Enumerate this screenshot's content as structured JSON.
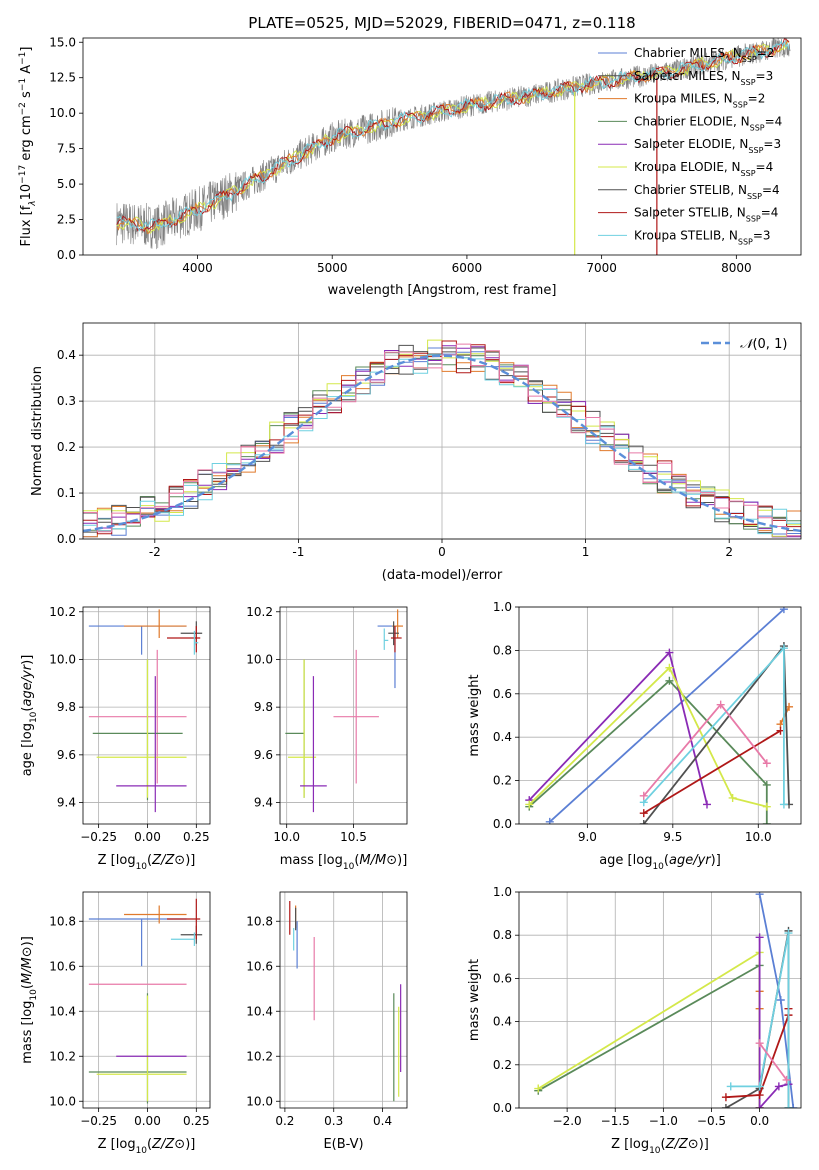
{
  "title": "PLATE=0525, MJD=52029, FIBERID=0471, z=0.118",
  "colors": {
    "Chabrier MILES": "#5b7fd4",
    "Salpeter MILES": "#505050",
    "Kroupa MILES": "#e07a2c",
    "Chabrier ELODIE": "#5a8a5a",
    "Salpeter ELODIE": "#8a2bb5",
    "Kroupa ELODIE": "#d4e84a",
    "Chabrier STELIB": "#505050",
    "Salpeter STELIB": "#b01818",
    "Kroupa STELIB": "#6fd0e0",
    "extra_pink": "#e87aa8",
    "data": "#808080",
    "normal": "#5b8fd9"
  },
  "chart_data": [
    {
      "type": "line",
      "id": "spectrum",
      "title": "PLATE=0525, MJD=52029, FIBERID=0471, z=0.118",
      "xlabel": "wavelength [Angstrom, rest frame]",
      "ylabel_parts": [
        "Flux [f",
        "λ",
        "10",
        "−17",
        " erg cm",
        "−2",
        " s",
        "−1",
        " A",
        "−1",
        "]"
      ],
      "xlim": [
        3150,
        8480
      ],
      "ylim": [
        0,
        15.3
      ],
      "xticks": [
        4000,
        5000,
        6000,
        7000,
        8000
      ],
      "yticks": [
        0.0,
        2.5,
        5.0,
        7.5,
        10.0,
        12.5,
        15.0
      ],
      "legend": [
        {
          "name": "Chabrier MILES",
          "nssp": "2"
        },
        {
          "name": "Salpeter MILES",
          "nssp": "3"
        },
        {
          "name": "Kroupa MILES",
          "nssp": "2"
        },
        {
          "name": "Chabrier ELODIE",
          "nssp": "4"
        },
        {
          "name": "Salpeter ELODIE",
          "nssp": "3"
        },
        {
          "name": "Kroupa ELODIE",
          "nssp": "4"
        },
        {
          "name": "Chabrier STELIB",
          "nssp": "4"
        },
        {
          "name": "Salpeter STELIB",
          "nssp": "4"
        },
        {
          "name": "Kroupa STELIB",
          "nssp": "3"
        }
      ],
      "legend_placement": "right",
      "continuum": {
        "x": [
          3400,
          3700,
          4000,
          4300,
          4600,
          5000,
          5500,
          6000,
          6500,
          7000,
          7500,
          8000,
          8400
        ],
        "y": [
          2.3,
          2.0,
          3.2,
          4.6,
          6.2,
          8.3,
          9.5,
          10.5,
          11.3,
          12.2,
          12.9,
          14.0,
          14.8
        ]
      }
    },
    {
      "type": "histogram",
      "id": "residuals",
      "xlabel": "(data-model)/error",
      "ylabel": "Normed distribution",
      "xlim": [
        -2.5,
        2.5
      ],
      "ylim": [
        0,
        0.47
      ],
      "xticks": [
        -2,
        -1,
        0,
        1,
        2
      ],
      "yticks": [
        0.0,
        0.1,
        0.2,
        0.3,
        0.4
      ],
      "grid": true,
      "legend": [
        {
          "name": "N(0,1)",
          "label_parts": [
            "𝒩",
            "(0, 1)"
          ]
        }
      ],
      "legend_placement": "top-right",
      "bin_width": 0.1
    },
    {
      "type": "errorbar",
      "id": "age-vs-Z",
      "xlabel": "Z [log10(Z/Z⊙)]",
      "ylabel": "age [log10(age/yr)]",
      "xlim": [
        -0.33,
        0.32
      ],
      "ylim": [
        9.31,
        10.22
      ],
      "xticks": [
        -0.25,
        0.0,
        0.25
      ],
      "xticklabels": [
        "−0.25",
        "0.00",
        "0.25"
      ],
      "yticks": [
        9.4,
        9.6,
        9.8,
        10.0,
        10.2
      ],
      "grid": true,
      "points": [
        {
          "model": "Chabrier MILES",
          "x": -0.03,
          "xerr": [
            0.27,
            0.23
          ],
          "y": 10.14,
          "yerr": [
            0.12,
            0.0
          ]
        },
        {
          "model": "Kroupa MILES",
          "x": 0.06,
          "xerr": [
            0.18,
            0.14
          ],
          "y": 10.14,
          "yerr": [
            0.05,
            0.07
          ]
        },
        {
          "model": "Chabrier STELIB",
          "x": 0.25,
          "xerr": [
            0.08,
            0.03
          ],
          "y": 10.11,
          "yerr": [
            0.05,
            0.05
          ]
        },
        {
          "model": "Salpeter STELIB",
          "x": 0.25,
          "xerr": [
            0.15,
            0.02
          ],
          "y": 10.09,
          "yerr": [
            0.06,
            0.05
          ]
        },
        {
          "model": "Kroupa STELIB",
          "x": 0.24,
          "xerr": [
            0.0,
            0.02
          ],
          "y": 10.07,
          "yerr": [
            0.05,
            0.05
          ]
        },
        {
          "model": "extra_pink",
          "x": 0.05,
          "xerr": [
            0.35,
            0.15
          ],
          "y": 9.76,
          "yerr": [
            0.28,
            0.28
          ]
        },
        {
          "model": "Chabrier ELODIE",
          "x": 0.0,
          "xerr": [
            0.28,
            0.18
          ],
          "y": 9.69,
          "yerr": [
            0.28,
            0.31
          ]
        },
        {
          "model": "Kroupa ELODIE",
          "x": 0.0,
          "xerr": [
            0.26,
            0.2
          ],
          "y": 9.59,
          "yerr": [
            0.17,
            0.41
          ]
        },
        {
          "model": "Salpeter ELODIE",
          "x": 0.04,
          "xerr": [
            0.2,
            0.16
          ],
          "y": 9.47,
          "yerr": [
            0.11,
            0.46
          ]
        }
      ]
    },
    {
      "type": "errorbar",
      "id": "age-vs-mass",
      "xlabel": "mass [log10(M/M⊙)]",
      "xlim": [
        9.95,
        10.9
      ],
      "ylim": [
        9.31,
        10.22
      ],
      "xticks": [
        10.0,
        10.5
      ],
      "xticklabels": [
        "10.0",
        "10.5"
      ],
      "yticks": [
        9.4,
        9.6,
        9.8,
        10.0,
        10.2
      ],
      "grid": true,
      "points": [
        {
          "model": "Chabrier MILES",
          "x": 10.81,
          "xerr": [
            0.13,
            0.0
          ],
          "y": 10.14,
          "yerr": [
            0.26,
            0.0
          ]
        },
        {
          "model": "Kroupa MILES",
          "x": 10.83,
          "xerr": [
            0.04,
            0.04
          ],
          "y": 10.14,
          "yerr": [
            0.05,
            0.07
          ]
        },
        {
          "model": "Chabrier STELIB",
          "x": 10.8,
          "xerr": [
            0.04,
            0.04
          ],
          "y": 10.11,
          "yerr": [
            0.05,
            0.05
          ]
        },
        {
          "model": "Salpeter STELIB",
          "x": 10.81,
          "xerr": [
            0.03,
            0.05
          ],
          "y": 10.09,
          "yerr": [
            0.06,
            0.05
          ]
        },
        {
          "model": "Kroupa STELIB",
          "x": 10.73,
          "xerr": [
            0.0,
            0.03
          ],
          "y": 10.08,
          "yerr": [
            0.04,
            0.05
          ]
        },
        {
          "model": "extra_pink",
          "x": 10.52,
          "xerr": [
            0.17,
            0.17
          ],
          "y": 9.76,
          "yerr": [
            0.28,
            0.28
          ]
        },
        {
          "model": "Chabrier ELODIE",
          "x": 10.13,
          "xerr": [
            0.14,
            0.0
          ],
          "y": 9.69,
          "yerr": [
            0.27,
            0.31
          ]
        },
        {
          "model": "Kroupa ELODIE",
          "x": 10.13,
          "xerr": [
            0.12,
            0.09
          ],
          "y": 9.59,
          "yerr": [
            0.17,
            0.41
          ]
        },
        {
          "model": "Salpeter ELODIE",
          "x": 10.2,
          "xerr": [
            0.1,
            0.1
          ],
          "y": 9.47,
          "yerr": [
            0.11,
            0.46
          ]
        }
      ]
    },
    {
      "type": "line",
      "id": "weight-vs-age",
      "xlabel": "age [log10(age/yr)]",
      "ylabel": "mass weight",
      "xlim": [
        8.6,
        10.25
      ],
      "ylim": [
        0,
        1.0
      ],
      "xticks": [
        9.0,
        9.5,
        10.0
      ],
      "xticklabels": [
        "9.0",
        "9.5",
        "10.0"
      ],
      "yticks": [
        0.0,
        0.2,
        0.4,
        0.6,
        0.8,
        1.0
      ],
      "grid": true,
      "series": [
        {
          "model": "Chabrier MILES",
          "x": [
            8.78,
            10.15
          ],
          "y": [
            0.01,
            0.99
          ]
        },
        {
          "model": "Kroupa MILES",
          "x": [
            10.13,
            10.18
          ],
          "y": [
            0.46,
            0.54
          ]
        },
        {
          "model": "Chabrier ELODIE",
          "x": [
            8.66,
            9.48,
            10.05,
            10.05
          ],
          "y": [
            0.08,
            0.66,
            0.18,
            0.0
          ]
        },
        {
          "model": "Salpeter ELODIE",
          "x": [
            8.66,
            9.48,
            9.7
          ],
          "y": [
            0.11,
            0.79,
            0.09
          ]
        },
        {
          "model": "Kroupa ELODIE",
          "x": [
            8.66,
            9.48,
            9.85,
            10.05
          ],
          "y": [
            0.09,
            0.72,
            0.12,
            0.08
          ]
        },
        {
          "model": "Chabrier STELIB",
          "x": [
            9.33,
            10.15,
            10.18
          ],
          "y": [
            0.0,
            0.82,
            0.09
          ]
        },
        {
          "model": "Salpeter STELIB",
          "x": [
            9.33,
            10.13
          ],
          "y": [
            0.05,
            0.43
          ]
        },
        {
          "model": "Kroupa STELIB",
          "x": [
            9.33,
            10.15,
            10.15
          ],
          "y": [
            0.1,
            0.81,
            0.09
          ]
        },
        {
          "model": "extra_pink",
          "x": [
            9.33,
            9.78,
            10.05
          ],
          "y": [
            0.13,
            0.55,
            0.28
          ]
        }
      ]
    },
    {
      "type": "errorbar",
      "id": "mass-vs-Z",
      "xlabel": "Z [log10(Z/Z⊙)]",
      "ylabel": "mass [log10(M/M⊙)]",
      "xlim": [
        -0.33,
        0.32
      ],
      "ylim": [
        9.97,
        10.93
      ],
      "xticks": [
        -0.25,
        0.0,
        0.25
      ],
      "xticklabels": [
        "−0.25",
        "0.00",
        "0.25"
      ],
      "yticks": [
        10.0,
        10.2,
        10.4,
        10.6,
        10.8
      ],
      "grid": true,
      "points": [
        {
          "model": "Chabrier MILES",
          "x": -0.03,
          "xerr": [
            0.27,
            0.23
          ],
          "y": 10.81,
          "yerr": [
            0.21,
            0.0
          ]
        },
        {
          "model": "Kroupa MILES",
          "x": 0.06,
          "xerr": [
            0.18,
            0.14
          ],
          "y": 10.83,
          "yerr": [
            0.04,
            0.04
          ]
        },
        {
          "model": "Chabrier STELIB",
          "x": 0.25,
          "xerr": [
            0.08,
            0.03
          ],
          "y": 10.74,
          "yerr": [
            0.04,
            0.04
          ]
        },
        {
          "model": "Salpeter STELIB",
          "x": 0.25,
          "xerr": [
            0.15,
            0.02
          ],
          "y": 10.81,
          "yerr": [
            0.09,
            0.09
          ]
        },
        {
          "model": "Kroupa STELIB",
          "x": 0.24,
          "xerr": [
            0.12,
            0.0
          ],
          "y": 10.72,
          "yerr": [
            0.03,
            0.03
          ]
        },
        {
          "model": "extra_pink",
          "x": 0.05,
          "xerr": [
            0.35,
            0.15
          ],
          "y": 10.52,
          "yerr": [
            0.0,
            0.0
          ]
        },
        {
          "model": "Chabrier ELODIE",
          "x": 0.0,
          "xerr": [
            0.3,
            0.2
          ],
          "y": 10.13,
          "yerr": [
            0.14,
            0.35
          ]
        },
        {
          "model": "Kroupa ELODIE",
          "x": 0.0,
          "xerr": [
            0.26,
            0.2
          ],
          "y": 10.12,
          "yerr": [
            0.12,
            0.35
          ]
        },
        {
          "model": "Salpeter ELODIE",
          "x": 0.04,
          "xerr": [
            0.2,
            0.16
          ],
          "y": 10.2,
          "yerr": [
            0.0,
            0.0
          ]
        }
      ]
    },
    {
      "type": "errorbar",
      "id": "mass-vs-ebv",
      "xlabel": "E(B-V)",
      "xlim": [
        0.19,
        0.45
      ],
      "ylim": [
        9.97,
        10.93
      ],
      "xticks": [
        0.2,
        0.3,
        0.4
      ],
      "xticklabels": [
        "0.2",
        "0.3",
        "0.4"
      ],
      "yticks": [
        10.0,
        10.2,
        10.4,
        10.6,
        10.8
      ],
      "grid": true,
      "points": [
        {
          "model": "Chabrier MILES",
          "x": 0.225,
          "y": 10.74,
          "yerr": [
            0.15,
            0.06
          ]
        },
        {
          "model": "Kroupa MILES",
          "x": 0.222,
          "y": 10.82,
          "yerr": [
            0.05,
            0.05
          ]
        },
        {
          "model": "Salpeter STELIB",
          "x": 0.21,
          "y": 10.8,
          "yerr": [
            0.06,
            0.09
          ]
        },
        {
          "model": "Chabrier STELIB",
          "x": 0.222,
          "y": 10.81,
          "yerr": [
            0.05,
            0.05
          ]
        },
        {
          "model": "Kroupa STELIB",
          "x": 0.218,
          "y": 10.72,
          "yerr": [
            0.05,
            0.05
          ]
        },
        {
          "model": "extra_pink",
          "x": 0.26,
          "y": 10.54,
          "yerr": [
            0.18,
            0.19
          ]
        },
        {
          "model": "Chabrier ELODIE",
          "x": 0.423,
          "y": 10.25,
          "yerr": [
            0.25,
            0.23
          ]
        },
        {
          "model": "Salpeter ELODIE",
          "x": 0.437,
          "y": 10.33,
          "yerr": [
            0.2,
            0.19
          ]
        },
        {
          "model": "Kroupa ELODIE",
          "x": 0.433,
          "y": 10.22,
          "yerr": [
            0.2,
            0.2
          ]
        }
      ]
    },
    {
      "type": "line",
      "id": "weight-vs-Z",
      "xlabel": "Z [log10(Z/Z⊙)]",
      "ylabel": "mass weight",
      "xlim": [
        -2.5,
        0.43
      ],
      "ylim": [
        0,
        1.0
      ],
      "xticks": [
        -2.0,
        -1.5,
        -1.0,
        -0.5,
        0.0
      ],
      "xticklabels": [
        "−2.0",
        "−1.5",
        "−1.0",
        "−0.5",
        "0.0"
      ],
      "yticks": [
        0.0,
        0.2,
        0.4,
        0.6,
        0.8,
        1.0
      ],
      "grid": true,
      "series": [
        {
          "model": "Chabrier MILES",
          "x": [
            0.0,
            0.22,
            0.35
          ],
          "y": [
            0.99,
            0.5,
            0.0
          ]
        },
        {
          "model": "Kroupa MILES",
          "x": [
            0.0,
            0.0,
            0.0
          ],
          "y": [
            0.54,
            0.46,
            0.0
          ]
        },
        {
          "model": "Chabrier ELODIE",
          "x": [
            -2.3,
            0.0,
            0.0
          ],
          "y": [
            0.08,
            0.66,
            0.0
          ]
        },
        {
          "model": "Kroupa ELODIE",
          "x": [
            -2.3,
            0.0,
            0.0
          ],
          "y": [
            0.09,
            0.72,
            0.0
          ]
        },
        {
          "model": "Salpeter ELODIE",
          "x": [
            0.0,
            0.0,
            0.2,
            0.3
          ],
          "y": [
            0.79,
            0.0,
            0.1,
            0.11
          ]
        },
        {
          "model": "Chabrier STELIB",
          "x": [
            -0.35,
            0.0,
            0.3,
            0.3
          ],
          "y": [
            0.0,
            0.09,
            0.82,
            0.0
          ]
        },
        {
          "model": "Salpeter STELIB",
          "x": [
            -0.35,
            0.0,
            0.3,
            0.3
          ],
          "y": [
            0.05,
            0.06,
            0.43,
            0.46
          ]
        },
        {
          "model": "Kroupa STELIB",
          "x": [
            -0.3,
            0.0,
            0.3,
            0.3
          ],
          "y": [
            0.1,
            0.1,
            0.81,
            0.0
          ]
        },
        {
          "model": "extra_pink",
          "x": [
            0.0,
            0.28
          ],
          "y": [
            0.3,
            0.13
          ]
        }
      ]
    }
  ]
}
